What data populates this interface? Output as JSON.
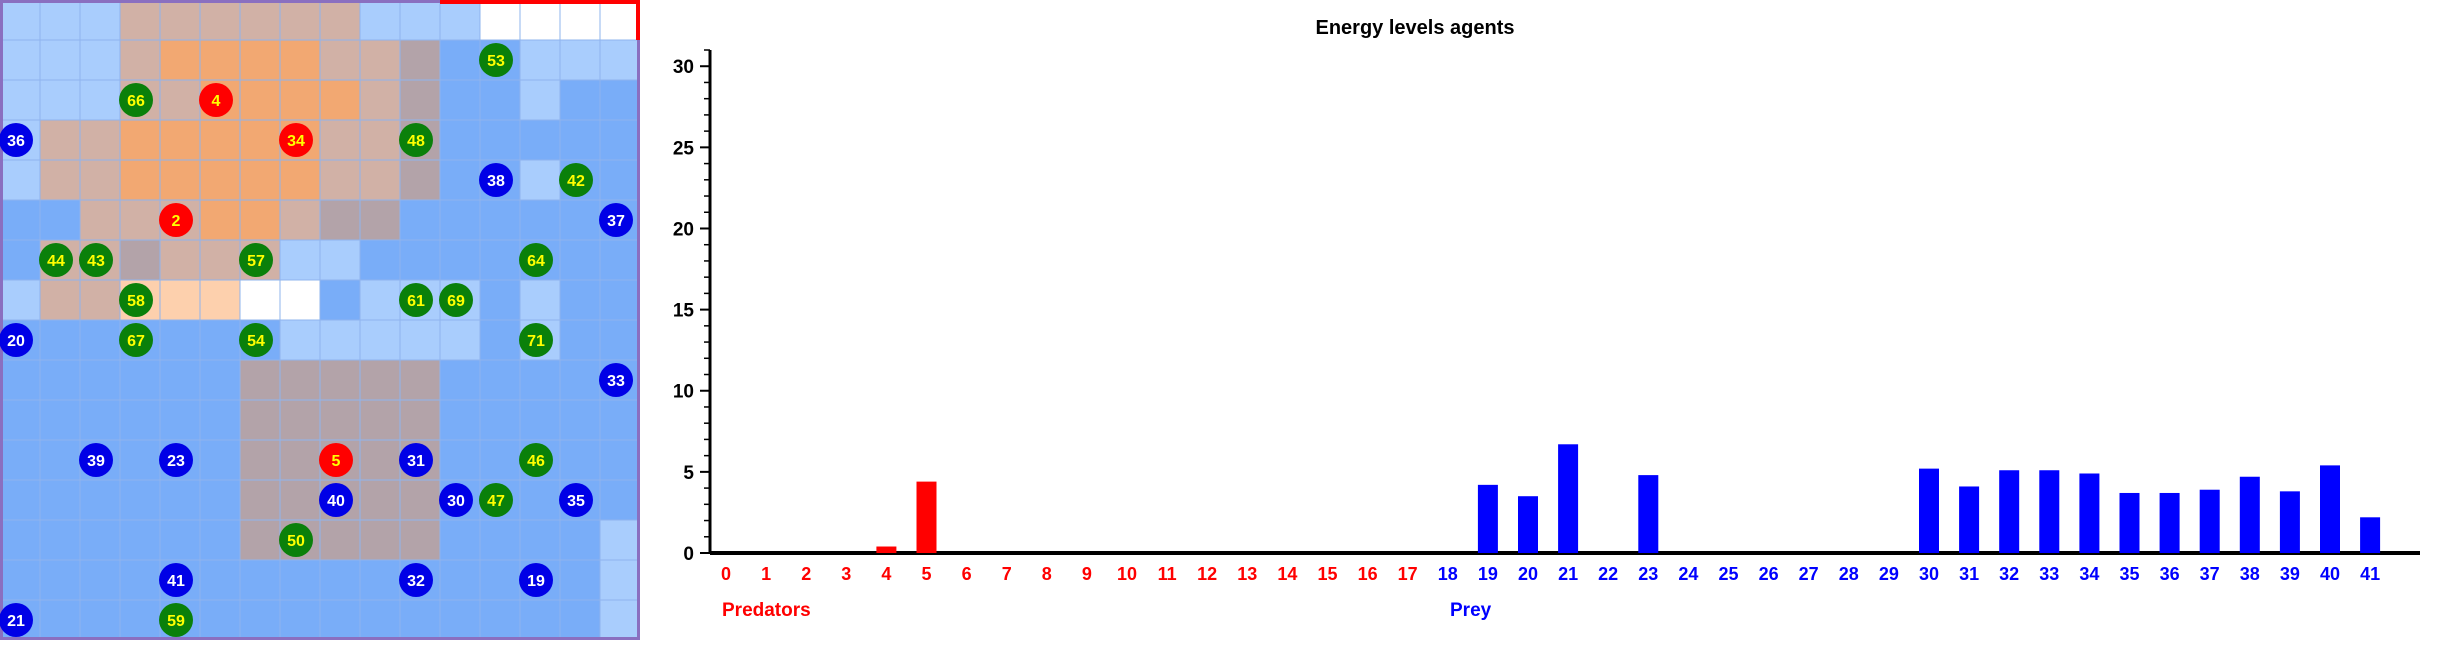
{
  "grid": {
    "rows": 16,
    "cols": 16,
    "palette": {
      "white": "#ffffff",
      "sky": "#a9cdfd",
      "blue": "#79adf8",
      "tan": "#d1b1a6",
      "mauve": "#b3a3a9",
      "orange": "#f2a872",
      "lightorange": "#fdd0ad"
    },
    "cells": [
      "sss ttttt sss wwwww",
      "sss ttttt sss wwwww"
    ],
    "cell_rows": [
      "sssttttttsssWWWW",
      "ssstcooottmbbsss",
      "sssttooootmbbsbb",
      "sttooooottmbbbbb",
      "sttooooottmbbsbb",
      "bbtttootmmbbbbbb",
      "bttmtttssbbbbbbb",
      "stTLLLWWbsssbsbb",
      "bbbbbbbsssssbsbb",
      "bbbbbbmmmmmbbbbb",
      "bbbbbbmmmmmbbbbb",
      "bbbbbbmmmmmbbbbb",
      "bbbbbbmmmmmbbbbb",
      "bbbbbbmmmmmbbbbs",
      "bbbbbbbbbbbbbbbs",
      "bbbbbbbbbbbbbbbs"
    ],
    "agents": [
      {
        "id": "53",
        "type": "green",
        "col": 12.4,
        "row": 1.5
      },
      {
        "id": "66",
        "type": "green",
        "col": 3.4,
        "row": 2.5
      },
      {
        "id": "4",
        "type": "red",
        "col": 5.4,
        "row": 2.5
      },
      {
        "id": "36",
        "type": "blue",
        "col": 0.4,
        "row": 3.5
      },
      {
        "id": "34",
        "type": "red",
        "col": 7.4,
        "row": 3.5
      },
      {
        "id": "48",
        "type": "green",
        "col": 10.4,
        "row": 3.5
      },
      {
        "id": "38",
        "type": "blue",
        "col": 12.4,
        "row": 4.5
      },
      {
        "id": "42",
        "type": "green",
        "col": 14.4,
        "row": 4.5
      },
      {
        "id": "2",
        "type": "red",
        "col": 4.4,
        "row": 5.5
      },
      {
        "id": "37",
        "type": "blue",
        "col": 15.4,
        "row": 5.5
      },
      {
        "id": "44",
        "type": "green",
        "col": 1.4,
        "row": 6.5
      },
      {
        "id": "43",
        "type": "green",
        "col": 2.4,
        "row": 6.5
      },
      {
        "id": "57",
        "type": "green",
        "col": 6.4,
        "row": 6.5
      },
      {
        "id": "64",
        "type": "green",
        "col": 13.4,
        "row": 6.5
      },
      {
        "id": "58",
        "type": "green",
        "col": 3.4,
        "row": 7.5
      },
      {
        "id": "61",
        "type": "green",
        "col": 10.4,
        "row": 7.5
      },
      {
        "id": "69",
        "type": "green",
        "col": 11.4,
        "row": 7.5
      },
      {
        "id": "20",
        "type": "blue",
        "col": 0.4,
        "row": 8.5
      },
      {
        "id": "67",
        "type": "green",
        "col": 3.4,
        "row": 8.5
      },
      {
        "id": "54",
        "type": "green",
        "col": 6.4,
        "row": 8.5
      },
      {
        "id": "71",
        "type": "green",
        "col": 13.4,
        "row": 8.5
      },
      {
        "id": "33",
        "type": "blue",
        "col": 15.4,
        "row": 9.5
      },
      {
        "id": "39",
        "type": "blue",
        "col": 2.4,
        "row": 11.5
      },
      {
        "id": "23",
        "type": "blue",
        "col": 4.4,
        "row": 11.5
      },
      {
        "id": "5",
        "type": "red",
        "col": 8.4,
        "row": 11.5
      },
      {
        "id": "31",
        "type": "blue",
        "col": 10.4,
        "row": 11.5
      },
      {
        "id": "46",
        "type": "green",
        "col": 13.4,
        "row": 11.5
      },
      {
        "id": "40",
        "type": "blue",
        "col": 8.4,
        "row": 12.5
      },
      {
        "id": "30",
        "type": "blue",
        "col": 11.4,
        "row": 12.5
      },
      {
        "id": "47",
        "type": "green",
        "col": 12.4,
        "row": 12.5
      },
      {
        "id": "35",
        "type": "blue",
        "col": 14.4,
        "row": 12.5
      },
      {
        "id": "50",
        "type": "green",
        "col": 7.4,
        "row": 13.5
      },
      {
        "id": "41",
        "type": "blue",
        "col": 4.4,
        "row": 14.5
      },
      {
        "id": "32",
        "type": "blue",
        "col": 10.4,
        "row": 14.5
      },
      {
        "id": "19",
        "type": "blue",
        "col": 13.4,
        "row": 14.5
      },
      {
        "id": "21",
        "type": "blue",
        "col": 0.4,
        "row": 15.5
      },
      {
        "id": "59",
        "type": "green",
        "col": 4.4,
        "row": 15.5
      }
    ],
    "agent_colors": {
      "red": "#ff0000",
      "green": "#0a800a",
      "blue": "#0000e6"
    },
    "label_colors": {
      "red": "#ffff00",
      "green": "#ffff00",
      "blue": "#ffffff"
    }
  },
  "chart_data": {
    "type": "bar",
    "title": "Energy levels agents",
    "ylim": [
      0,
      31
    ],
    "yticks": [
      0,
      5,
      10,
      15,
      20,
      25,
      30
    ],
    "categories": [
      "0",
      "1",
      "2",
      "3",
      "4",
      "5",
      "6",
      "7",
      "8",
      "9",
      "10",
      "11",
      "12",
      "13",
      "14",
      "15",
      "16",
      "17",
      "18",
      "19",
      "20",
      "21",
      "22",
      "23",
      "24",
      "25",
      "26",
      "27",
      "28",
      "29",
      "30",
      "31",
      "32",
      "33",
      "34",
      "35",
      "36",
      "37",
      "38",
      "39",
      "40",
      "41"
    ],
    "category_groups": [
      "Predators",
      "Predators",
      "Predators",
      "Predators",
      "Predators",
      "Predators",
      "Predators",
      "Predators",
      "Predators",
      "Predators",
      "Predators",
      "Predators",
      "Predators",
      "Predators",
      "Predators",
      "Predators",
      "Predators",
      "Predators",
      "Prey",
      "Prey",
      "Prey",
      "Prey",
      "Prey",
      "Prey",
      "Prey",
      "Prey",
      "Prey",
      "Prey",
      "Prey",
      "Prey",
      "Prey",
      "Prey",
      "Prey",
      "Prey",
      "Prey",
      "Prey",
      "Prey",
      "Prey",
      "Prey",
      "Prey",
      "Prey",
      "Prey"
    ],
    "values": [
      0,
      0,
      0,
      0,
      0.4,
      4.4,
      0,
      0,
      0,
      0,
      0,
      0,
      0,
      0,
      0,
      0,
      0,
      0,
      0,
      4.2,
      3.5,
      6.7,
      0,
      4.8,
      0,
      0,
      0,
      0,
      0,
      0,
      5.2,
      4.1,
      5.1,
      5.1,
      4.9,
      3.7,
      3.7,
      3.9,
      4.7,
      3.8,
      5.4,
      2.2
    ],
    "groups": [
      {
        "name": "Predators",
        "color": "#ff0000"
      },
      {
        "name": "Prey",
        "color": "#0000ff"
      }
    ]
  }
}
